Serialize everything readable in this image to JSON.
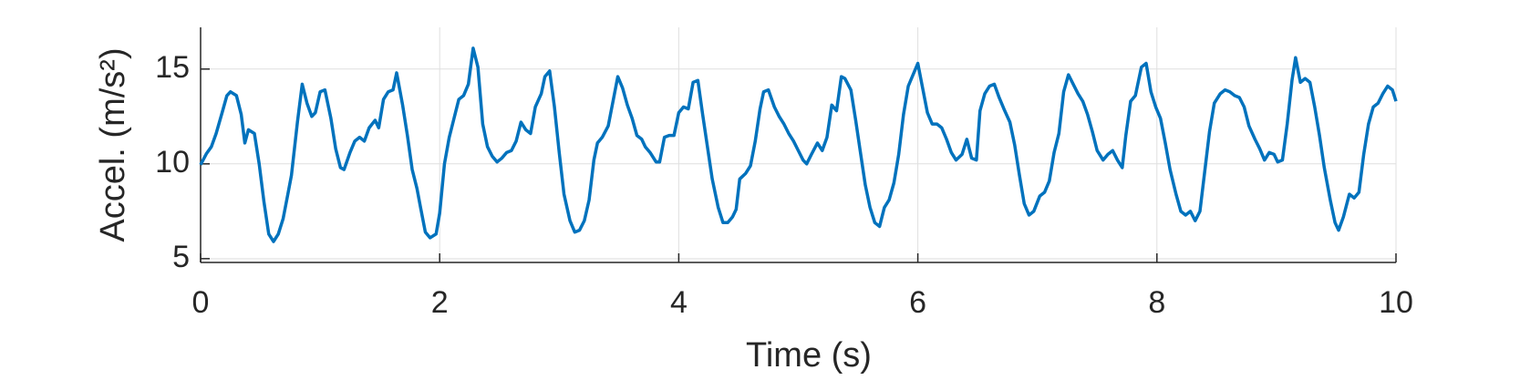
{
  "chart_data": {
    "type": "line",
    "xlabel": "Time (s)",
    "ylabel": "Accel. (m/s²)",
    "xlim": [
      0,
      10
    ],
    "ylim": [
      4.8,
      17.2
    ],
    "xticks": [
      0,
      2,
      4,
      6,
      8,
      10
    ],
    "yticks": [
      5,
      10,
      15
    ],
    "grid": true,
    "color": "#0072bd",
    "x": [
      0,
      0.05,
      0.09,
      0.13,
      0.18,
      0.22,
      0.25,
      0.3,
      0.34,
      0.37,
      0.4,
      0.45,
      0.49,
      0.53,
      0.57,
      0.61,
      0.65,
      0.69,
      0.73,
      0.76,
      0.81,
      0.85,
      0.89,
      0.93,
      0.96,
      1.0,
      1.04,
      1.09,
      1.13,
      1.17,
      1.2,
      1.25,
      1.29,
      1.33,
      1.37,
      1.41,
      1.46,
      1.49,
      1.53,
      1.57,
      1.61,
      1.64,
      1.69,
      1.73,
      1.77,
      1.81,
      1.84,
      1.88,
      1.92,
      1.97,
      2.0,
      2.04,
      2.08,
      2.12,
      2.16,
      2.2,
      2.24,
      2.28,
      2.32,
      2.36,
      2.4,
      2.44,
      2.48,
      2.52,
      2.56,
      2.6,
      2.64,
      2.68,
      2.72,
      2.76,
      2.8,
      2.85,
      2.88,
      2.92,
      2.96,
      3.0,
      3.04,
      3.09,
      3.13,
      3.17,
      3.21,
      3.25,
      3.29,
      3.32,
      3.36,
      3.41,
      3.45,
      3.49,
      3.53,
      3.57,
      3.61,
      3.65,
      3.69,
      3.72,
      3.76,
      3.81,
      3.84,
      3.88,
      3.92,
      3.96,
      4.0,
      4.04,
      4.08,
      4.12,
      4.16,
      4.2,
      4.24,
      4.28,
      4.33,
      4.37,
      4.41,
      4.45,
      4.48,
      4.51,
      4.56,
      4.6,
      4.64,
      4.68,
      4.71,
      4.75,
      4.8,
      4.84,
      4.88,
      4.92,
      4.96,
      5.0,
      5.04,
      5.07,
      5.11,
      5.16,
      5.2,
      5.24,
      5.28,
      5.32,
      5.36,
      5.39,
      5.44,
      5.48,
      5.52,
      5.56,
      5.6,
      5.64,
      5.68,
      5.72,
      5.76,
      5.8,
      5.84,
      5.88,
      5.92,
      6.0,
      6.04,
      6.08,
      6.12,
      6.16,
      6.2,
      6.24,
      6.28,
      6.32,
      6.37,
      6.41,
      6.45,
      6.49,
      6.52,
      6.56,
      6.6,
      6.64,
      6.68,
      6.72,
      6.77,
      6.81,
      6.85,
      6.89,
      6.93,
      6.97,
      7.02,
      7.06,
      7.1,
      7.14,
      7.18,
      7.22,
      7.26,
      7.3,
      7.34,
      7.38,
      7.42,
      7.46,
      7.5,
      7.55,
      7.59,
      7.63,
      7.67,
      7.71,
      7.74,
      7.78,
      7.82,
      7.87,
      7.91,
      7.95,
      7.99,
      8.03,
      8.07,
      8.11,
      8.16,
      8.2,
      8.24,
      8.28,
      8.32,
      8.36,
      8.4,
      8.44,
      8.48,
      8.53,
      8.57,
      8.61,
      8.65,
      8.69,
      8.73,
      8.77,
      8.82,
      8.86,
      8.9,
      8.94,
      8.98,
      9.01,
      9.05,
      9.09,
      9.13,
      9.16,
      9.2,
      9.24,
      9.28,
      9.32,
      9.36,
      9.4,
      9.45,
      9.49,
      9.52,
      9.56,
      9.61,
      9.65,
      9.69,
      9.73,
      9.77,
      9.81,
      9.85,
      9.89,
      9.93,
      9.97,
      10
    ],
    "values": [
      9.95,
      10.55,
      10.9,
      11.6,
      12.7,
      13.6,
      13.8,
      13.6,
      12.6,
      11.1,
      11.8,
      11.6,
      10,
      8,
      6.3,
      5.9,
      6.3,
      7.1,
      8.4,
      9.4,
      12.2,
      14.2,
      13.2,
      12.5,
      12.7,
      13.8,
      13.9,
      12.4,
      10.8,
      9.8,
      9.7,
      10.6,
      11.2,
      11.4,
      11.2,
      11.9,
      12.3,
      11.9,
      13.4,
      13.8,
      13.9,
      14.8,
      13.1,
      11.5,
      9.7,
      8.7,
      7.7,
      6.4,
      6.1,
      6.3,
      7.4,
      10,
      11.4,
      12.4,
      13.4,
      13.6,
      14.2,
      16.1,
      15.1,
      12.1,
      10.9,
      10.4,
      10.1,
      10.3,
      10.6,
      10.7,
      11.2,
      12.2,
      11.8,
      11.6,
      13,
      13.7,
      14.6,
      14.9,
      13,
      10.6,
      8.4,
      7,
      6.4,
      6.5,
      7,
      8.1,
      10.2,
      11.1,
      11.4,
      12,
      13.3,
      14.6,
      14,
      13.1,
      12.4,
      11.5,
      11.3,
      10.9,
      10.6,
      10.1,
      10.1,
      11.4,
      11.5,
      11.5,
      12.7,
      13,
      12.9,
      14.3,
      14.4,
      12.6,
      10.9,
      9.2,
      7.7,
      6.9,
      6.9,
      7.2,
      7.6,
      9.2,
      9.5,
      9.9,
      11.2,
      12.9,
      13.8,
      13.9,
      13,
      12.5,
      12.1,
      11.6,
      11.2,
      10.7,
      10.2,
      10,
      10.5,
      11.1,
      10.7,
      11.4,
      13.1,
      12.8,
      14.6,
      14.5,
      13.9,
      12.3,
      10.6,
      8.9,
      7.7,
      6.9,
      6.7,
      7.7,
      8.1,
      9,
      10.5,
      12.6,
      14.1,
      15.3,
      14,
      12.7,
      12.1,
      12.1,
      11.9,
      11.3,
      10.6,
      10.2,
      10.5,
      11.3,
      10.3,
      10.2,
      12.8,
      13.7,
      14.1,
      14.2,
      13.5,
      12.9,
      12.2,
      11,
      9.4,
      7.9,
      7.3,
      7.5,
      8.3,
      8.5,
      9.1,
      10.6,
      11.6,
      13.8,
      14.7,
      14.2,
      13.7,
      13.3,
      12.6,
      11.7,
      10.7,
      10.2,
      10.5,
      10.7,
      10.2,
      9.8,
      11.5,
      13.3,
      13.6,
      15.1,
      15.3,
      13.8,
      13,
      12.4,
      11.1,
      9.7,
      8.4,
      7.5,
      7.3,
      7.5,
      7,
      7.5,
      9.6,
      11.7,
      13.2,
      13.7,
      13.9,
      13.8,
      13.6,
      13.5,
      13,
      12,
      11.3,
      10.8,
      10.2,
      10.6,
      10.5,
      10.1,
      10.2,
      12.1,
      14.4,
      15.6,
      14.3,
      14.5,
      14.3,
      13,
      11.5,
      9.8,
      8.1,
      6.9,
      6.5,
      7.2,
      8.4,
      8.2,
      8.5,
      10.5,
      12.1,
      13,
      13.2,
      13.7,
      14.1,
      13.9,
      13.3
    ]
  }
}
